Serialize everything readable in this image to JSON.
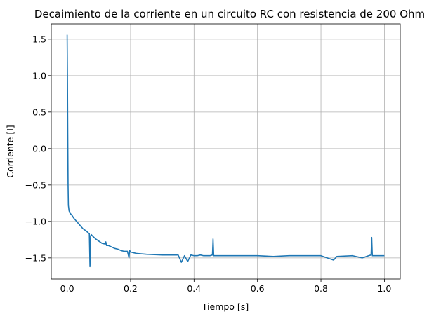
{
  "chart_data": {
    "type": "line",
    "title": "Decaimiento de la corriente en un circuito RC con resistencia de 200 Ohm",
    "xlabel": "Tiempo [s]",
    "ylabel": "Corriente [I]",
    "xlim": [
      -0.05,
      1.05
    ],
    "ylim": [
      -1.79,
      1.71
    ],
    "x_ticks": [
      0.0,
      0.2,
      0.4,
      0.6,
      0.8,
      1.0
    ],
    "x_tick_labels": [
      "0.0",
      "0.2",
      "0.4",
      "0.6",
      "0.8",
      "1.0"
    ],
    "y_ticks": [
      -1.5,
      -1.0,
      -0.5,
      0.0,
      0.5,
      1.0,
      1.5
    ],
    "y_tick_labels": [
      "−1.5",
      "−1.0",
      "−0.5",
      "0.0",
      "0.5",
      "1.0",
      "1.5"
    ],
    "grid": true,
    "series": [
      {
        "color": "#1f77b4",
        "x": [
          0.0,
          0.001,
          0.002,
          0.003,
          0.004,
          0.006,
          0.008,
          0.012,
          0.016,
          0.02,
          0.03,
          0.04,
          0.05,
          0.06,
          0.07,
          0.072,
          0.074,
          0.076,
          0.08,
          0.09,
          0.1,
          0.11,
          0.12,
          0.122,
          0.124,
          0.13,
          0.14,
          0.15,
          0.16,
          0.17,
          0.18,
          0.19,
          0.195,
          0.197,
          0.2,
          0.21,
          0.22,
          0.25,
          0.3,
          0.35,
          0.36,
          0.37,
          0.38,
          0.39,
          0.4,
          0.41,
          0.42,
          0.43,
          0.45,
          0.458,
          0.46,
          0.462,
          0.47,
          0.5,
          0.55,
          0.6,
          0.65,
          0.7,
          0.75,
          0.8,
          0.84,
          0.85,
          0.9,
          0.93,
          0.95,
          0.958,
          0.96,
          0.962,
          0.97,
          1.0
        ],
        "y": [
          1.56,
          1.0,
          0.2,
          -0.5,
          -0.78,
          -0.85,
          -0.88,
          -0.9,
          -0.92,
          -0.95,
          -1.0,
          -1.05,
          -1.1,
          -1.13,
          -1.17,
          -1.62,
          -1.2,
          -1.18,
          -1.2,
          -1.24,
          -1.27,
          -1.3,
          -1.31,
          -1.28,
          -1.33,
          -1.33,
          -1.35,
          -1.37,
          -1.38,
          -1.4,
          -1.41,
          -1.41,
          -1.5,
          -1.4,
          -1.42,
          -1.43,
          -1.44,
          -1.45,
          -1.46,
          -1.46,
          -1.56,
          -1.47,
          -1.55,
          -1.46,
          -1.47,
          -1.47,
          -1.46,
          -1.47,
          -1.47,
          -1.46,
          -1.24,
          -1.47,
          -1.47,
          -1.47,
          -1.47,
          -1.47,
          -1.48,
          -1.47,
          -1.47,
          -1.47,
          -1.53,
          -1.48,
          -1.47,
          -1.5,
          -1.47,
          -1.46,
          -1.22,
          -1.47,
          -1.47,
          -1.47
        ]
      }
    ]
  }
}
